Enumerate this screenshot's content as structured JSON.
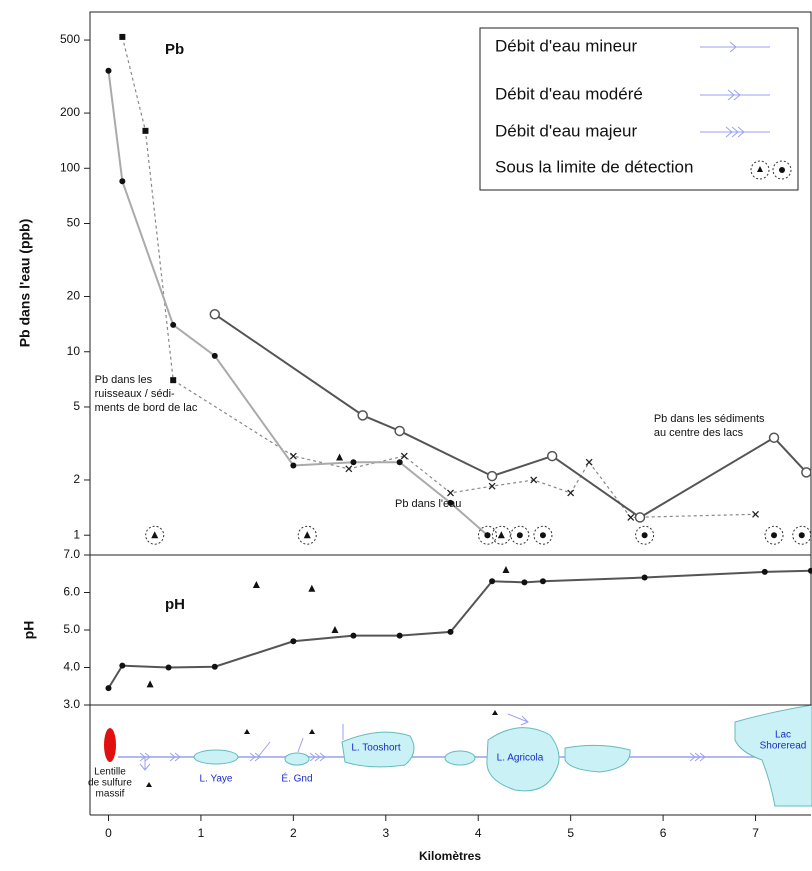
{
  "chart_data": [
    {
      "type": "line",
      "title": "Pb",
      "ylabel": "Pb dans l'eau (ppb)",
      "log_scale": true,
      "xlim": [
        -0.2,
        7.6
      ],
      "ylim": [
        0.78,
        711
      ],
      "yticks": [
        1,
        2,
        5,
        10,
        20,
        50,
        100,
        200,
        500
      ],
      "series": [
        {
          "color": "#888888",
          "style": "dotted",
          "markers": [
            "square",
            "square",
            "square",
            "x",
            "x",
            "x",
            "x",
            "x",
            "x",
            "x",
            "x",
            "x",
            "x"
          ],
          "x": [
            0.15,
            0.4,
            0.7,
            2.0,
            2.6,
            3.2,
            3.7,
            4.15,
            4.6,
            5.0,
            5.2,
            5.65,
            7.0
          ],
          "values": [
            520,
            160,
            7,
            2.7,
            2.3,
            2.7,
            1.7,
            1.85,
            2.0,
            1.7,
            2.5,
            1.25,
            1.3
          ]
        },
        {
          "color": "#aaaaaa",
          "style": "solid",
          "marker": "dot",
          "x": [
            0.0,
            0.15,
            0.7,
            1.15,
            2.0,
            2.65,
            3.15,
            3.7,
            4.1
          ],
          "values": [
            340,
            85,
            14,
            9.5,
            2.4,
            2.5,
            2.5,
            1.5,
            1.0
          ]
        },
        {
          "color": "#555555",
          "style": "solid",
          "marker": "open-circle",
          "x": [
            1.15,
            2.75,
            3.15,
            4.15,
            4.8,
            5.75,
            7.2,
            7.55
          ],
          "values": [
            16,
            4.5,
            3.7,
            2.1,
            2.7,
            1.25,
            3.4,
            2.2
          ]
        },
        {
          "color": "#111111",
          "style": "none",
          "marker": "triangle",
          "x": [
            2.5
          ],
          "values": [
            2.65
          ]
        }
      ],
      "below_detection": {
        "x": [
          0.5,
          2.15,
          4.1,
          4.25,
          4.45,
          4.7,
          5.8,
          7.2,
          7.5
        ],
        "values": [
          1,
          1,
          1,
          1,
          1,
          1,
          1,
          1,
          1
        ],
        "markers": [
          "triangle",
          "triangle",
          "dot",
          "triangle",
          "dot",
          "dot",
          "dot",
          "dot",
          "dot"
        ]
      },
      "annotations": [
        {
          "text": [
            "Pb dans les",
            "ruisseaux / sédi-",
            "ments de bord de lac"
          ],
          "x": -0.15,
          "y": 7
        },
        {
          "text": [
            "Pb dans l'eau"
          ],
          "x": 3.1,
          "y": 1.48
        },
        {
          "text": [
            "Pb dans les sédiments",
            "au centre des lacs"
          ],
          "x": 5.9,
          "y": 4.3
        }
      ],
      "legend_items": [
        "Débit d'eau mineur",
        "Débit d'eau modéré",
        "Débit d'eau majeur",
        "Sous la limite de détection"
      ]
    },
    {
      "type": "line",
      "title": "pH",
      "ylabel": "pH",
      "xlabel": "Kilomètres",
      "xlim": [
        -0.2,
        7.6
      ],
      "xticks": [
        0,
        1,
        2,
        3,
        4,
        5,
        6,
        7
      ],
      "ylim": [
        3,
        7
      ],
      "yticks": [
        {
          "value": 3,
          "label": "3.0"
        },
        {
          "value": 4,
          "label": "4.0"
        },
        {
          "value": 5,
          "label": "5.0"
        },
        {
          "value": 6,
          "label": "6.0"
        },
        {
          "value": 7,
          "label": "7.0"
        }
      ],
      "series": [
        {
          "color": "#555555",
          "style": "solid",
          "marker": "dot",
          "x": [
            0.0,
            0.15,
            0.65,
            1.15,
            2.0,
            2.65,
            3.15,
            3.7,
            4.15,
            4.5,
            4.7,
            5.8,
            7.1,
            7.6
          ],
          "values": [
            3.45,
            4.05,
            4.0,
            4.02,
            4.7,
            4.85,
            4.85,
            4.95,
            6.3,
            6.27,
            6.3,
            6.4,
            6.55,
            6.58
          ]
        },
        {
          "color": "#111111",
          "style": "none",
          "marker": "triangle",
          "x": [
            0.45,
            1.6,
            2.2,
            2.45,
            4.3
          ],
          "values": [
            3.55,
            6.2,
            6.1,
            5.0,
            6.6
          ]
        }
      ]
    }
  ],
  "map": {
    "labels": [
      [
        "Lentille",
        "de sulfure",
        "massif"
      ],
      [
        "L. Yaye"
      ],
      [
        "É. Gnd"
      ],
      [
        "L. Tooshort"
      ],
      [
        "L. Agricola"
      ],
      [
        "Lac",
        "Shoreread"
      ]
    ]
  }
}
